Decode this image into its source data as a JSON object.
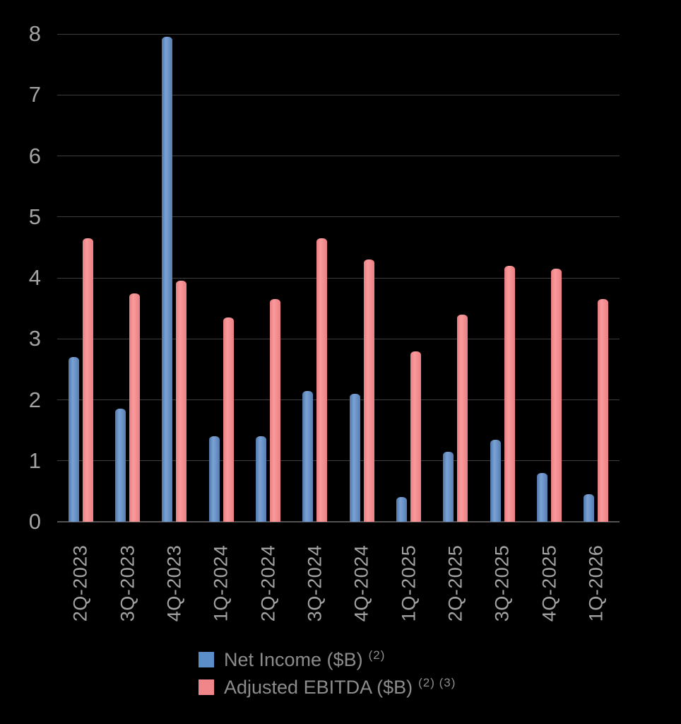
{
  "chart_data": {
    "type": "bar",
    "title": "",
    "xlabel": "",
    "ylabel": "",
    "categories": [
      "2Q-2023",
      "3Q-2023",
      "4Q-2023",
      "1Q-2024",
      "2Q-2024",
      "3Q-2024",
      "4Q-2024",
      "1Q-2025",
      "2Q-2025",
      "3Q-2025",
      "4Q-2025",
      "1Q-2026"
    ],
    "series": [
      {
        "key": "net-income",
        "name": "Net Income ($B)",
        "footnote": "(2)",
        "color": "#6b91c9",
        "values": [
          2.7,
          1.85,
          7.95,
          1.4,
          1.4,
          2.15,
          2.1,
          0.4,
          1.15,
          1.35,
          0.8,
          0.45
        ]
      },
      {
        "key": "adjusted-ebitda",
        "name": "Adjusted EBITDA ($B)",
        "footnote": "(2) (3)",
        "color": "#f58a8d",
        "values": [
          4.65,
          3.75,
          3.95,
          3.35,
          3.65,
          4.65,
          4.3,
          2.8,
          3.4,
          4.2,
          4.15,
          3.65
        ]
      }
    ],
    "ylim": [
      0,
      8
    ],
    "y_ticks": [
      0,
      1,
      2,
      3,
      4,
      5,
      6,
      7,
      8
    ],
    "grid": true,
    "legend_position": "bottom",
    "background_color": "#000000",
    "gridline_color": "#3d3d3d",
    "axis_label_color": "#a3a3a3",
    "legend_text_color": "#8c8c8c"
  }
}
